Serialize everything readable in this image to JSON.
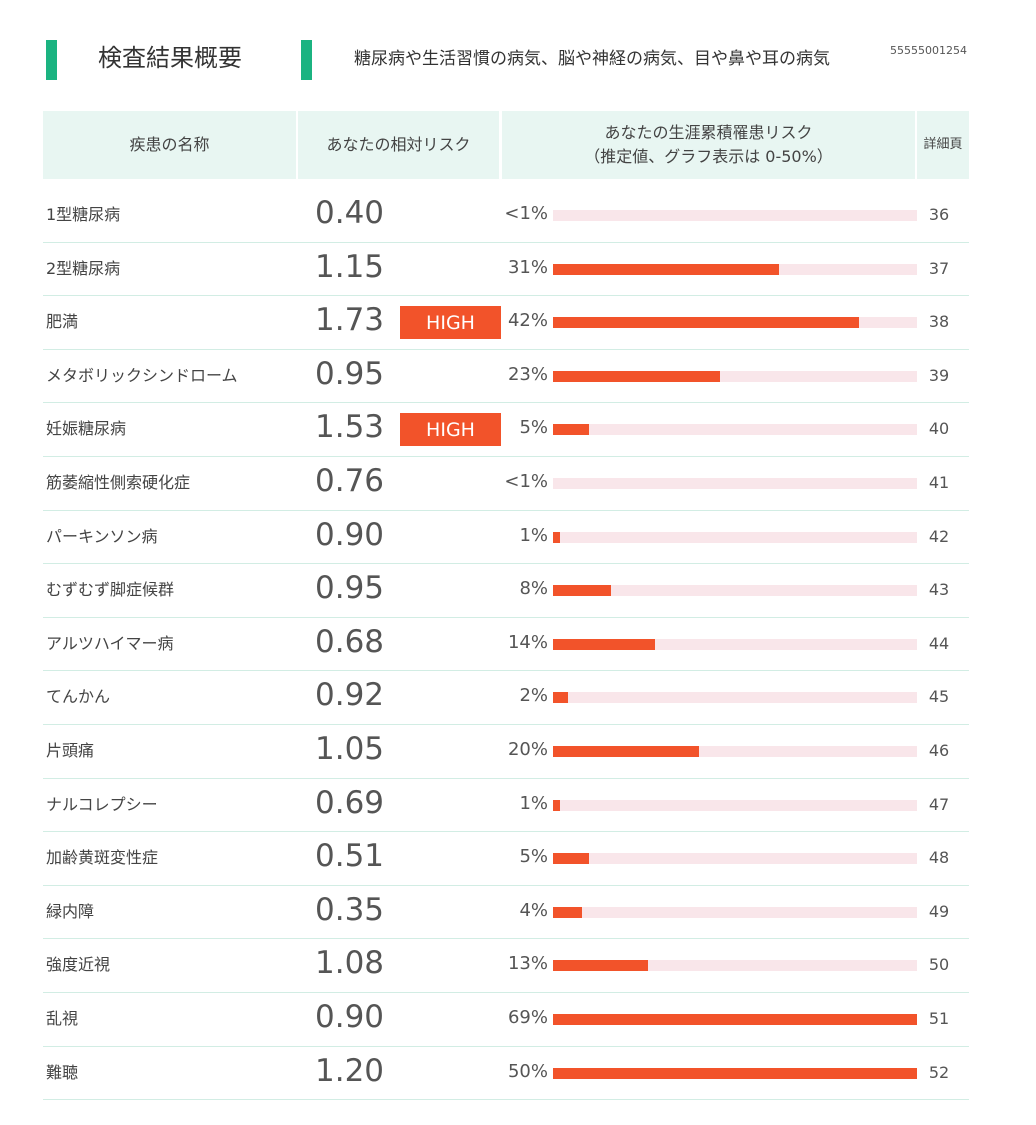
{
  "header": {
    "title": "検査結果概要",
    "subtitle": "糖尿病や生活習慣の病気、脳や神経の病気、目や鼻や耳の病気",
    "report_id": "55555001254"
  },
  "table": {
    "columns": {
      "name": "疾患の名称",
      "relative_risk": "あなたの相対リスク",
      "lifetime_risk_line1": "あなたの生涯累積罹患リスク",
      "lifetime_risk_line2": "（推定値、グラフ表示は 0-50%）",
      "page": "詳細頁"
    },
    "graph_max_percent": 50,
    "rows": [
      {
        "name": "1型糖尿病",
        "relative_risk": "0.40",
        "badge": "",
        "lifetime_risk": "<1%",
        "bar_percent": 0,
        "page": "36"
      },
      {
        "name": "2型糖尿病",
        "relative_risk": "1.15",
        "badge": "",
        "lifetime_risk": "31%",
        "bar_percent": 31,
        "page": "37"
      },
      {
        "name": "肥満",
        "relative_risk": "1.73",
        "badge": "HIGH",
        "lifetime_risk": "42%",
        "bar_percent": 42,
        "page": "38"
      },
      {
        "name": "メタボリックシンドローム",
        "relative_risk": "0.95",
        "badge": "",
        "lifetime_risk": "23%",
        "bar_percent": 23,
        "page": "39"
      },
      {
        "name": "妊娠糖尿病",
        "relative_risk": "1.53",
        "badge": "HIGH",
        "lifetime_risk": "5%",
        "bar_percent": 5,
        "page": "40"
      },
      {
        "name": "筋萎縮性側索硬化症",
        "relative_risk": "0.76",
        "badge": "",
        "lifetime_risk": "<1%",
        "bar_percent": 0,
        "page": "41"
      },
      {
        "name": "パーキンソン病",
        "relative_risk": "0.90",
        "badge": "",
        "lifetime_risk": "1%",
        "bar_percent": 1,
        "page": "42"
      },
      {
        "name": "むずむず脚症候群",
        "relative_risk": "0.95",
        "badge": "",
        "lifetime_risk": "8%",
        "bar_percent": 8,
        "page": "43"
      },
      {
        "name": "アルツハイマー病",
        "relative_risk": "0.68",
        "badge": "",
        "lifetime_risk": "14%",
        "bar_percent": 14,
        "page": "44"
      },
      {
        "name": "てんかん",
        "relative_risk": "0.92",
        "badge": "",
        "lifetime_risk": "2%",
        "bar_percent": 2,
        "page": "45"
      },
      {
        "name": "片頭痛",
        "relative_risk": "1.05",
        "badge": "",
        "lifetime_risk": "20%",
        "bar_percent": 20,
        "page": "46"
      },
      {
        "name": "ナルコレプシー",
        "relative_risk": "0.69",
        "badge": "",
        "lifetime_risk": "1%",
        "bar_percent": 1,
        "page": "47"
      },
      {
        "name": "加齢黄斑変性症",
        "relative_risk": "0.51",
        "badge": "",
        "lifetime_risk": "5%",
        "bar_percent": 5,
        "page": "48"
      },
      {
        "name": "緑内障",
        "relative_risk": "0.35",
        "badge": "",
        "lifetime_risk": "4%",
        "bar_percent": 4,
        "page": "49"
      },
      {
        "name": "強度近視",
        "relative_risk": "1.08",
        "badge": "",
        "lifetime_risk": "13%",
        "bar_percent": 13,
        "page": "50"
      },
      {
        "name": "乱視",
        "relative_risk": "0.90",
        "badge": "",
        "lifetime_risk": "69%",
        "bar_percent": 69,
        "page": "51"
      },
      {
        "name": "難聴",
        "relative_risk": "1.20",
        "badge": "",
        "lifetime_risk": "50%",
        "bar_percent": 50,
        "page": "52"
      }
    ]
  },
  "colors": {
    "accent_green": "#1bb381",
    "header_bg": "#e8f6f2",
    "bar_fill": "#f2532a",
    "bar_track": "#f9e6ea",
    "badge_bg": "#f2532a"
  }
}
